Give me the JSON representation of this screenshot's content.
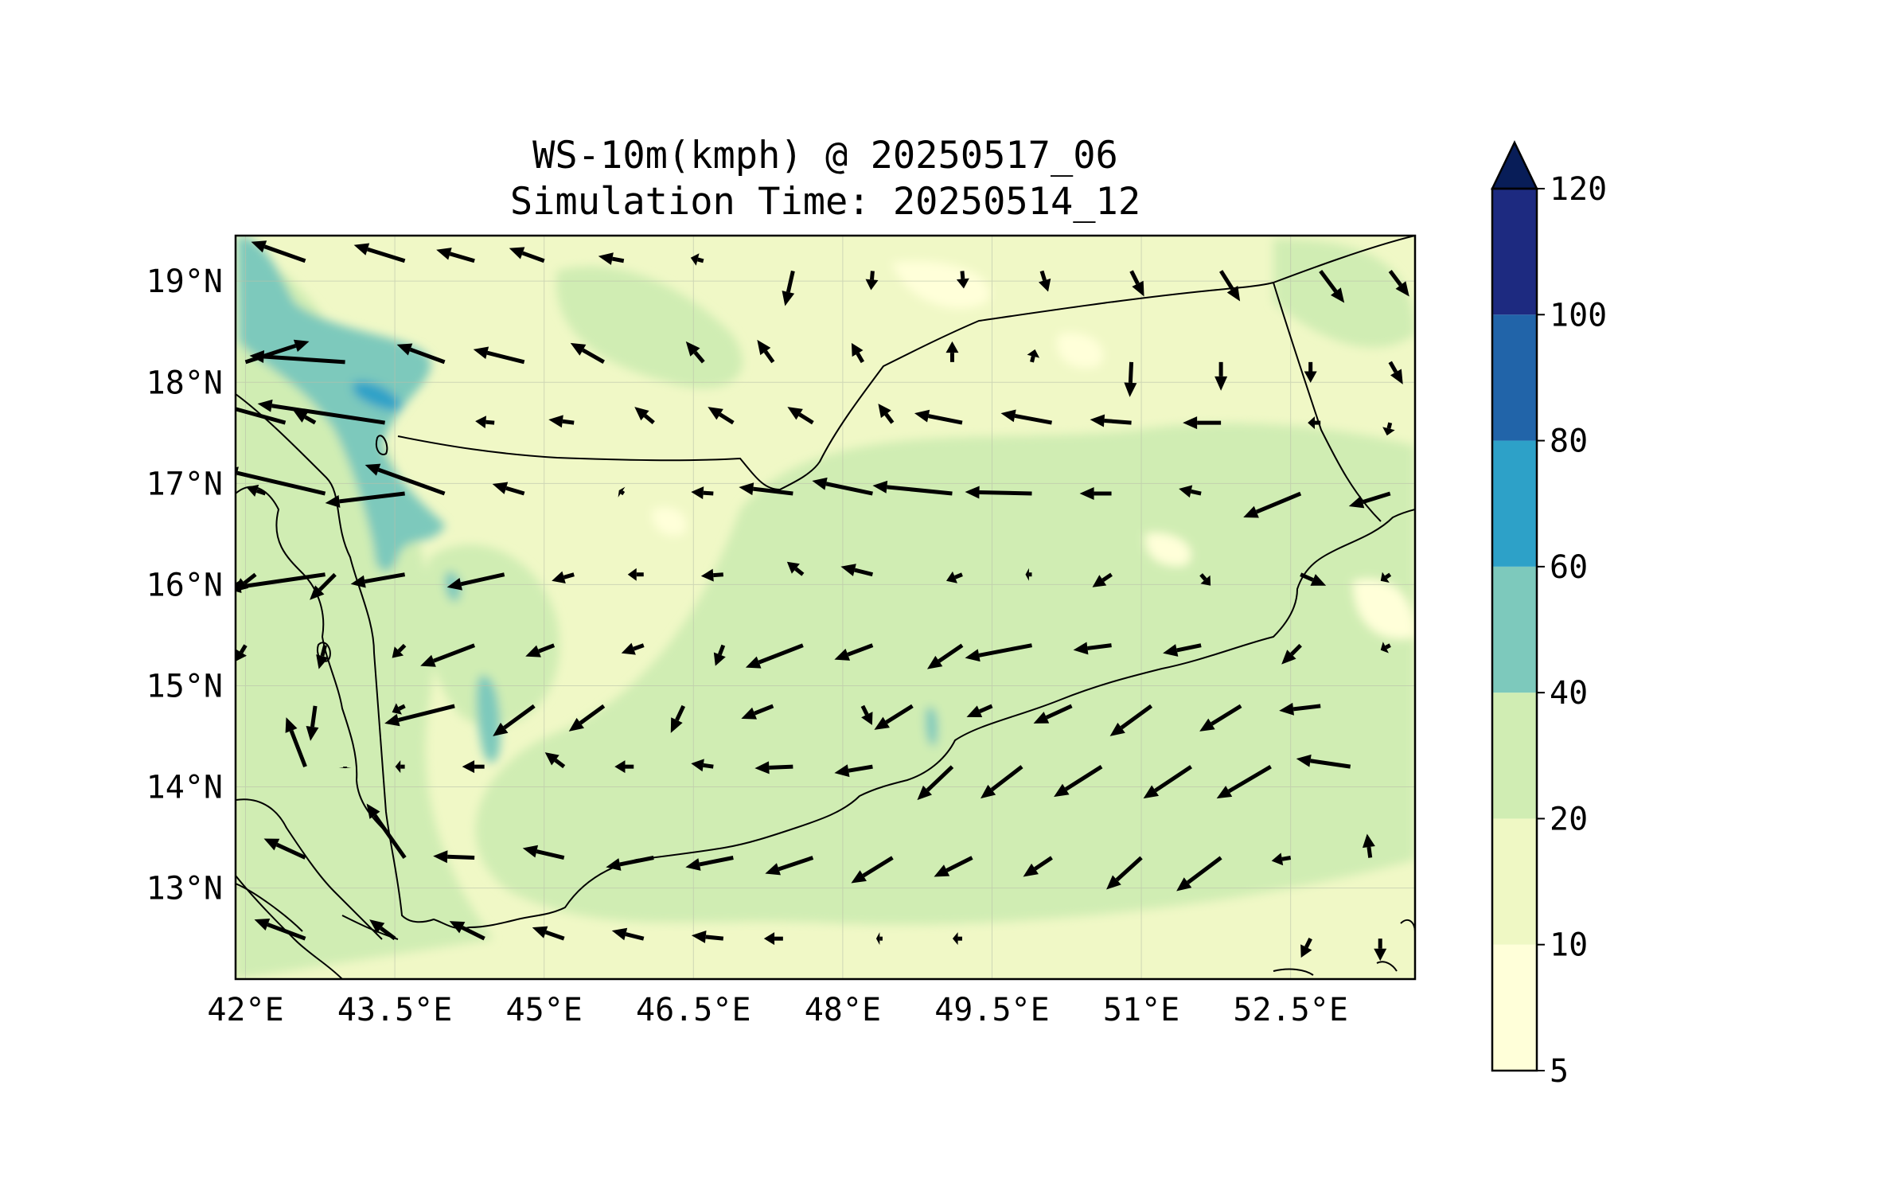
{
  "title": {
    "line1": "WS-10m(kmph) @ 20250517_06",
    "line2": "Simulation Time: 20250514_12"
  },
  "map": {
    "extent": {
      "lon": [
        41.9,
        53.75
      ],
      "lat": [
        12.1,
        19.45
      ]
    },
    "lon_ticks": [
      {
        "value": 42.0,
        "label": "42°E"
      },
      {
        "value": 43.5,
        "label": "43.5°E"
      },
      {
        "value": 45.0,
        "label": "45°E"
      },
      {
        "value": 46.5,
        "label": "46.5°E"
      },
      {
        "value": 48.0,
        "label": "48°E"
      },
      {
        "value": 49.5,
        "label": "49.5°E"
      },
      {
        "value": 51.0,
        "label": "51°E"
      },
      {
        "value": 52.5,
        "label": "52.5°E"
      }
    ],
    "lat_ticks": [
      {
        "value": 19,
        "label": "19°N"
      },
      {
        "value": 18,
        "label": "18°N"
      },
      {
        "value": 17,
        "label": "17°N"
      },
      {
        "value": 16,
        "label": "16°N"
      },
      {
        "value": 15,
        "label": "15°N"
      },
      {
        "value": 14,
        "label": "14°N"
      },
      {
        "value": 13,
        "label": "13°N"
      }
    ],
    "gridlines": true,
    "background_fill": "#f0f8c6"
  },
  "colorbar": {
    "extend": "max",
    "levels": [
      {
        "label": "5",
        "color": "#ffffd9"
      },
      {
        "label": "10",
        "color": "#eff8c4"
      },
      {
        "label": "20",
        "color": "#d0edb3"
      },
      {
        "label": "40",
        "color": "#7dc9bc"
      },
      {
        "label": "60",
        "color": "#2da1c8"
      },
      {
        "label": "80",
        "color": "#2164a9"
      },
      {
        "label": "100",
        "color": "#1d2a80"
      },
      {
        "label": "120",
        "color": "#081d58"
      }
    ]
  },
  "wind_vectors": {
    "color": "#000000",
    "vectors": [
      [
        42.6,
        19.2,
        -3.4,
        1.2
      ],
      [
        43.6,
        19.2,
        -3.2,
        1.0
      ],
      [
        44.3,
        19.2,
        -2.4,
        0.7
      ],
      [
        45.0,
        19.2,
        -2.2,
        0.8
      ],
      [
        45.8,
        19.2,
        -1.6,
        0.3
      ],
      [
        46.6,
        19.2,
        -0.8,
        0.2
      ],
      [
        47.5,
        19.1,
        -0.5,
        -2.2
      ],
      [
        48.3,
        19.1,
        -0.1,
        -1.2
      ],
      [
        49.2,
        19.1,
        0.1,
        -1.1
      ],
      [
        50.0,
        19.1,
        0.4,
        -1.3
      ],
      [
        50.9,
        19.1,
        0.8,
        -1.6
      ],
      [
        51.8,
        19.1,
        1.2,
        -1.9
      ],
      [
        52.8,
        19.1,
        1.5,
        -2.0
      ],
      [
        53.5,
        19.1,
        1.2,
        -1.6
      ],
      [
        42.0,
        18.2,
        4.0,
        1.3
      ],
      [
        43.0,
        18.2,
        -6.0,
        0.4
      ],
      [
        44.0,
        18.2,
        -3.0,
        1.1
      ],
      [
        44.8,
        18.2,
        -3.2,
        0.8
      ],
      [
        45.6,
        18.2,
        -2.1,
        1.2
      ],
      [
        46.6,
        18.2,
        -1.1,
        1.3
      ],
      [
        47.3,
        18.2,
        -1.0,
        1.4
      ],
      [
        48.2,
        18.2,
        -0.7,
        1.2
      ],
      [
        49.1,
        18.2,
        0.0,
        1.3
      ],
      [
        49.9,
        18.2,
        0.2,
        0.8
      ],
      [
        50.9,
        18.2,
        -0.1,
        -2.2
      ],
      [
        51.8,
        18.2,
        0.0,
        -1.8
      ],
      [
        52.7,
        18.2,
        0.0,
        -1.3
      ],
      [
        53.5,
        18.2,
        0.8,
        -1.4
      ],
      [
        42.4,
        17.6,
        -5.8,
        1.6
      ],
      [
        42.7,
        17.6,
        -1.4,
        0.8
      ],
      [
        43.4,
        17.6,
        -8.0,
        1.2
      ],
      [
        44.5,
        17.6,
        -1.2,
        0.1
      ],
      [
        45.3,
        17.6,
        -1.6,
        0.2
      ],
      [
        46.1,
        17.6,
        -1.2,
        1.0
      ],
      [
        46.9,
        17.6,
        -1.6,
        1.0
      ],
      [
        47.7,
        17.6,
        -1.6,
        1.0
      ],
      [
        48.5,
        17.6,
        -0.9,
        1.2
      ],
      [
        49.2,
        17.6,
        -3.0,
        0.6
      ],
      [
        50.1,
        17.6,
        -3.2,
        0.6
      ],
      [
        50.9,
        17.6,
        -2.6,
        0.2
      ],
      [
        51.8,
        17.6,
        -2.4,
        0.0
      ],
      [
        52.8,
        17.6,
        -0.8,
        0.0
      ],
      [
        53.5,
        17.6,
        -0.2,
        -0.8
      ],
      [
        42.2,
        16.9,
        -1.2,
        0.4
      ],
      [
        42.8,
        16.9,
        -6.4,
        1.5
      ],
      [
        43.6,
        16.9,
        -5.0,
        -0.6
      ],
      [
        44.0,
        16.9,
        -5.0,
        1.8
      ],
      [
        44.8,
        16.9,
        -2.0,
        0.6
      ],
      [
        45.8,
        16.9,
        -0.3,
        0.2
      ],
      [
        46.7,
        16.9,
        -1.4,
        0.1
      ],
      [
        47.5,
        16.9,
        -3.4,
        0.4
      ],
      [
        48.3,
        16.9,
        -3.8,
        0.8
      ],
      [
        49.1,
        16.9,
        -5.0,
        0.5
      ],
      [
        49.9,
        16.9,
        -4.2,
        0.1
      ],
      [
        50.7,
        16.9,
        -2.0,
        0.0
      ],
      [
        51.6,
        16.9,
        -1.4,
        0.3
      ],
      [
        52.6,
        16.9,
        -3.6,
        -1.5
      ],
      [
        53.5,
        16.9,
        -2.6,
        -0.8
      ],
      [
        42.1,
        16.1,
        -1.4,
        -1.1
      ],
      [
        42.8,
        16.1,
        -6.2,
        -0.9
      ],
      [
        42.9,
        16.1,
        -1.6,
        -1.6
      ],
      [
        43.6,
        16.1,
        -3.4,
        -0.6
      ],
      [
        44.6,
        16.1,
        -3.6,
        -0.8
      ],
      [
        45.3,
        16.1,
        -1.4,
        -0.4
      ],
      [
        46.0,
        16.1,
        -1.0,
        0.0
      ],
      [
        46.8,
        16.1,
        -1.4,
        -0.1
      ],
      [
        47.6,
        16.1,
        -1.0,
        0.8
      ],
      [
        48.3,
        16.1,
        -2.0,
        0.5
      ],
      [
        49.2,
        16.1,
        -1.0,
        -0.4
      ],
      [
        49.9,
        16.1,
        -0.4,
        0.0
      ],
      [
        50.7,
        16.1,
        -1.2,
        -0.8
      ],
      [
        51.6,
        16.1,
        0.6,
        -0.7
      ],
      [
        52.6,
        16.1,
        1.6,
        -0.7
      ],
      [
        53.5,
        16.1,
        -0.6,
        -0.4
      ],
      [
        42.0,
        15.4,
        -0.6,
        -1.0
      ],
      [
        42.8,
        15.4,
        -0.4,
        -1.5
      ],
      [
        43.6,
        15.4,
        -0.8,
        -0.8
      ],
      [
        44.3,
        15.4,
        -3.4,
        -1.3
      ],
      [
        45.1,
        15.4,
        -1.8,
        -0.7
      ],
      [
        46.0,
        15.4,
        -1.4,
        -0.5
      ],
      [
        46.8,
        15.4,
        -0.5,
        -1.3
      ],
      [
        47.6,
        15.4,
        -3.6,
        -1.4
      ],
      [
        48.3,
        15.4,
        -2.4,
        -0.9
      ],
      [
        49.2,
        15.4,
        -2.2,
        -1.5
      ],
      [
        49.9,
        15.4,
        -4.2,
        -0.8
      ],
      [
        50.7,
        15.4,
        -2.4,
        -0.3
      ],
      [
        51.6,
        15.4,
        -2.4,
        -0.5
      ],
      [
        52.6,
        15.4,
        -1.2,
        -1.2
      ],
      [
        53.5,
        15.4,
        -0.6,
        -0.3
      ],
      [
        42.7,
        14.8,
        -0.3,
        -2.2
      ],
      [
        43.6,
        14.8,
        -0.8,
        -0.4
      ],
      [
        44.1,
        14.8,
        -4.4,
        -1.1
      ],
      [
        44.9,
        14.8,
        -2.6,
        -1.9
      ],
      [
        45.6,
        14.8,
        -2.2,
        -1.6
      ],
      [
        46.4,
        14.8,
        -0.8,
        -1.7
      ],
      [
        47.3,
        14.8,
        -2.0,
        -0.8
      ],
      [
        48.2,
        14.8,
        0.6,
        -1.2
      ],
      [
        48.7,
        14.8,
        -2.4,
        -1.5
      ],
      [
        49.5,
        14.8,
        -1.6,
        -0.7
      ],
      [
        50.3,
        14.8,
        -2.4,
        -1.1
      ],
      [
        51.1,
        14.8,
        -2.6,
        -1.9
      ],
      [
        52.0,
        14.8,
        -2.6,
        -1.6
      ],
      [
        52.8,
        14.8,
        -2.6,
        -0.3
      ],
      [
        42.6,
        14.2,
        -1.2,
        3.1
      ],
      [
        43.0,
        14.2,
        0.0,
        -0.1
      ],
      [
        43.6,
        14.2,
        -0.6,
        0.0
      ],
      [
        44.4,
        14.2,
        -1.4,
        0.0
      ],
      [
        45.2,
        14.2,
        -1.2,
        0.9
      ],
      [
        45.9,
        14.2,
        -1.2,
        0.0
      ],
      [
        46.7,
        14.2,
        -1.4,
        0.2
      ],
      [
        47.5,
        14.2,
        -2.4,
        -0.1
      ],
      [
        48.3,
        14.2,
        -2.4,
        -0.4
      ],
      [
        49.1,
        14.2,
        -2.2,
        -2.1
      ],
      [
        49.8,
        14.2,
        -2.6,
        -2.0
      ],
      [
        50.6,
        14.2,
        -3.0,
        -1.9
      ],
      [
        51.5,
        14.2,
        -3.0,
        -2.0
      ],
      [
        52.3,
        14.2,
        -3.4,
        -2.0
      ],
      [
        53.1,
        14.2,
        -3.4,
        0.5
      ],
      [
        42.6,
        13.3,
        -2.6,
        1.2
      ],
      [
        43.6,
        13.3,
        -2.4,
        3.4
      ],
      [
        44.3,
        13.3,
        -2.6,
        0.1
      ],
      [
        45.2,
        13.3,
        -2.6,
        0.6
      ],
      [
        46.1,
        13.3,
        -3.0,
        -0.6
      ],
      [
        46.9,
        13.3,
        -3.0,
        -0.6
      ],
      [
        47.7,
        13.3,
        -3.0,
        -1.0
      ],
      [
        48.5,
        13.3,
        -2.6,
        -1.6
      ],
      [
        49.3,
        13.3,
        -2.4,
        -1.2
      ],
      [
        50.1,
        13.3,
        -1.8,
        -1.2
      ],
      [
        51.0,
        13.3,
        -2.2,
        -2.0
      ],
      [
        51.8,
        13.3,
        -2.8,
        -2.1
      ],
      [
        52.5,
        13.3,
        -1.2,
        -0.2
      ],
      [
        53.3,
        13.3,
        -0.2,
        1.5
      ],
      [
        42.6,
        12.5,
        -3.2,
        1.2
      ],
      [
        43.5,
        12.5,
        -1.6,
        1.2
      ],
      [
        44.4,
        12.5,
        -2.2,
        1.1
      ],
      [
        45.2,
        12.5,
        -2.0,
        0.7
      ],
      [
        46.0,
        12.5,
        -2.0,
        0.5
      ],
      [
        46.8,
        12.5,
        -2.0,
        0.2
      ],
      [
        47.4,
        12.5,
        -1.2,
        0.0
      ],
      [
        48.4,
        12.5,
        -0.4,
        0.0
      ],
      [
        49.2,
        12.5,
        -0.6,
        0.0
      ],
      [
        52.7,
        12.5,
        -0.6,
        -1.2
      ],
      [
        53.4,
        12.5,
        0.0,
        -1.4
      ]
    ]
  }
}
